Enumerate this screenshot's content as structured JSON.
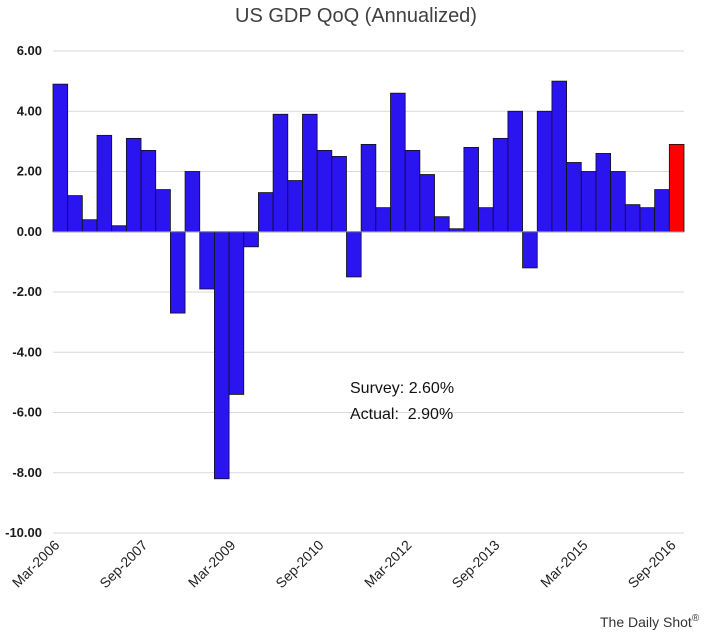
{
  "chart_data": {
    "type": "bar",
    "title": "US GDP QoQ (Annualized)",
    "xlabel": "",
    "ylabel": "",
    "ylim": [
      -10,
      6
    ],
    "yticks": [
      "-10.00",
      "-8.00",
      "-6.00",
      "-4.00",
      "-2.00",
      "0.00",
      "2.00",
      "4.00",
      "6.00"
    ],
    "grid": true,
    "xtick_labels": [
      "Mar-2006",
      "Sep-2007",
      "Mar-2009",
      "Sep-2010",
      "Mar-2012",
      "Sep-2013",
      "Mar-2015",
      "Sep-2016"
    ],
    "categories": [
      "Mar-2006",
      "Jun-2006",
      "Sep-2006",
      "Dec-2006",
      "Mar-2007",
      "Jun-2007",
      "Sep-2007",
      "Dec-2007",
      "Mar-2008",
      "Jun-2008",
      "Sep-2008",
      "Dec-2008",
      "Mar-2009",
      "Jun-2009",
      "Sep-2009",
      "Dec-2009",
      "Mar-2010",
      "Jun-2010",
      "Sep-2010",
      "Dec-2010",
      "Mar-2011",
      "Jun-2011",
      "Sep-2011",
      "Dec-2011",
      "Mar-2012",
      "Jun-2012",
      "Sep-2012",
      "Dec-2012",
      "Mar-2013",
      "Jun-2013",
      "Sep-2013",
      "Dec-2013",
      "Mar-2014",
      "Jun-2014",
      "Sep-2014",
      "Dec-2014",
      "Mar-2015",
      "Jun-2015",
      "Sep-2015",
      "Dec-2015",
      "Mar-2016",
      "Jun-2016",
      "Sep-2016"
    ],
    "values": [
      4.9,
      1.2,
      0.4,
      3.2,
      0.2,
      3.1,
      2.7,
      1.4,
      -2.7,
      2.0,
      -1.9,
      -8.2,
      -5.4,
      -0.5,
      1.3,
      3.9,
      1.7,
      3.9,
      2.7,
      2.5,
      -1.5,
      2.9,
      0.8,
      4.6,
      2.7,
      1.9,
      0.5,
      0.1,
      2.8,
      0.8,
      3.1,
      4.0,
      -1.2,
      4.0,
      5.0,
      2.3,
      2.0,
      2.6,
      2.0,
      0.9,
      0.8,
      1.4,
      2.9
    ],
    "highlight_index": 42,
    "colors": {
      "bar": "#2a14f0",
      "highlight": "#ff0000",
      "outline": "#111111"
    },
    "annotations": [
      "Survey: 2.60%",
      "Actual:  2.90%"
    ]
  },
  "credit": "The Daily Shot",
  "credit_mark": "®"
}
